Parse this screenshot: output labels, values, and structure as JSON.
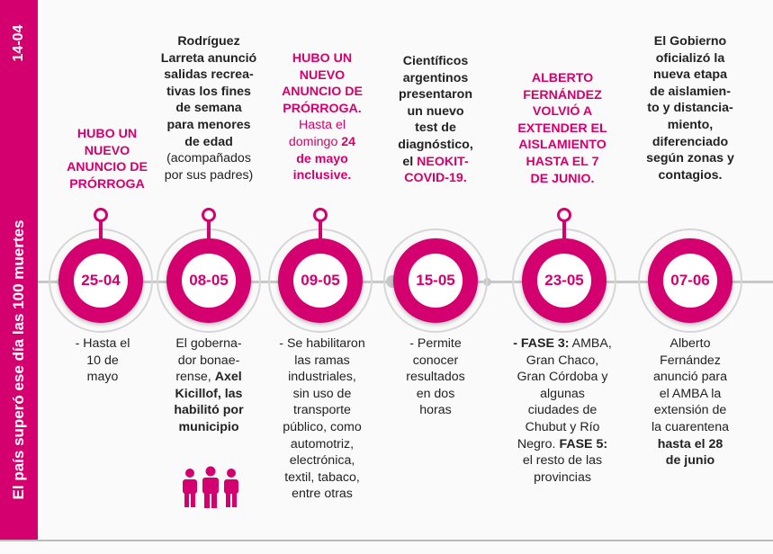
{
  "sidebar": {
    "text": "El país superó ese día las 100 muertes",
    "date": "14-04"
  },
  "colors": {
    "accent": "#d4006f",
    "line": "#c8c8c8"
  },
  "events": [
    {
      "date": "25-04",
      "top": {
        "l1": "HUBO UN",
        "l2": "NUEVO",
        "l3": "ANUNCIO DE",
        "l4": "PRÓRROGA"
      },
      "bottom": {
        "l1": "- Hasta el",
        "l2": "10 de",
        "l3": "mayo"
      }
    },
    {
      "date": "08-05",
      "top": {
        "l1": "Rodríguez",
        "l2": "Larreta anunció",
        "l3": "salidas recrea-",
        "l4": "tivas los fines",
        "l5": "de semana",
        "l6": "para menores",
        "l7": "de edad",
        "l8": "(acompañados",
        "l9": "por sus padres)"
      },
      "bottom": {
        "l1": "El goberna-",
        "l2": "dor bonae-",
        "l3a": "rense,",
        "l3b": "Axel",
        "l4": "Kicillof, las",
        "l5": "habilitó por",
        "l6": "municipio"
      },
      "icon": "people-icon"
    },
    {
      "date": "09-05",
      "top": {
        "l1": "HUBO UN",
        "l2": "NUEVO",
        "l3": "ANUNCIO DE",
        "l4": "PRÓRROGA.",
        "l5": "Hasta el",
        "l6a": "domingo",
        "l6b": "24",
        "l7": "de mayo",
        "l8": "inclusive."
      },
      "bottom": {
        "l1": "- Se habilitaron",
        "l2": "las ramas",
        "l3": "industriales,",
        "l4": "sin uso de",
        "l5": "transporte",
        "l6": "público, como",
        "l7": "automotriz,",
        "l8": "electrónica,",
        "l9": "textil, tabaco,",
        "l10": "entre otras"
      }
    },
    {
      "date": "15-05",
      "top": {
        "l1": "Científicos",
        "l2": "argentinos",
        "l3": "presentaron",
        "l4": "un nuevo",
        "l5": "test de",
        "l6": "diagnóstico,",
        "l7a": "el",
        "l7b": "NEOKIT-",
        "l8": "COVID-19."
      },
      "bottom": {
        "l1": "- Permite",
        "l2": "conocer",
        "l3": "resultados",
        "l4": "en dos",
        "l5": "horas"
      }
    },
    {
      "date": "23-05",
      "top": {
        "l1": "ALBERTO",
        "l2": "FERNÁNDEZ",
        "l3": "VOLVIÓ A",
        "l4": "EXTENDER EL",
        "l5": "AISLAMIENTO",
        "l6": "HASTA EL 7",
        "l7": "DE JUNIO."
      },
      "bottom": {
        "l1a": "- FASE 3:",
        "l1b": "AMBA,",
        "l2": "Gran Chaco,",
        "l3": "Gran Córdoba y",
        "l4": "algunas",
        "l5": "ciudades de",
        "l6": "Chubut y Río",
        "l7a": "Negro.",
        "l7b": "FASE 5:",
        "l8": "el resto de las",
        "l9": "provincias"
      }
    },
    {
      "date": "07-06",
      "top": {
        "l1": "El Gobierno",
        "l2": "oficializó la",
        "l3": "nueva etapa",
        "l4": "de aislamien-",
        "l5": "to y distancia-",
        "l6": "miento,",
        "l7": "diferenciado",
        "l8": "según zonas y",
        "l9": "contagios."
      },
      "bottom": {
        "l1": "Alberto",
        "l2": "Fernández",
        "l3": "anunció para",
        "l4": "el AMBA la",
        "l5": "extensión de",
        "l6": "la cuarentena",
        "l7": "hasta el 28",
        "l8": "de junio"
      }
    }
  ]
}
